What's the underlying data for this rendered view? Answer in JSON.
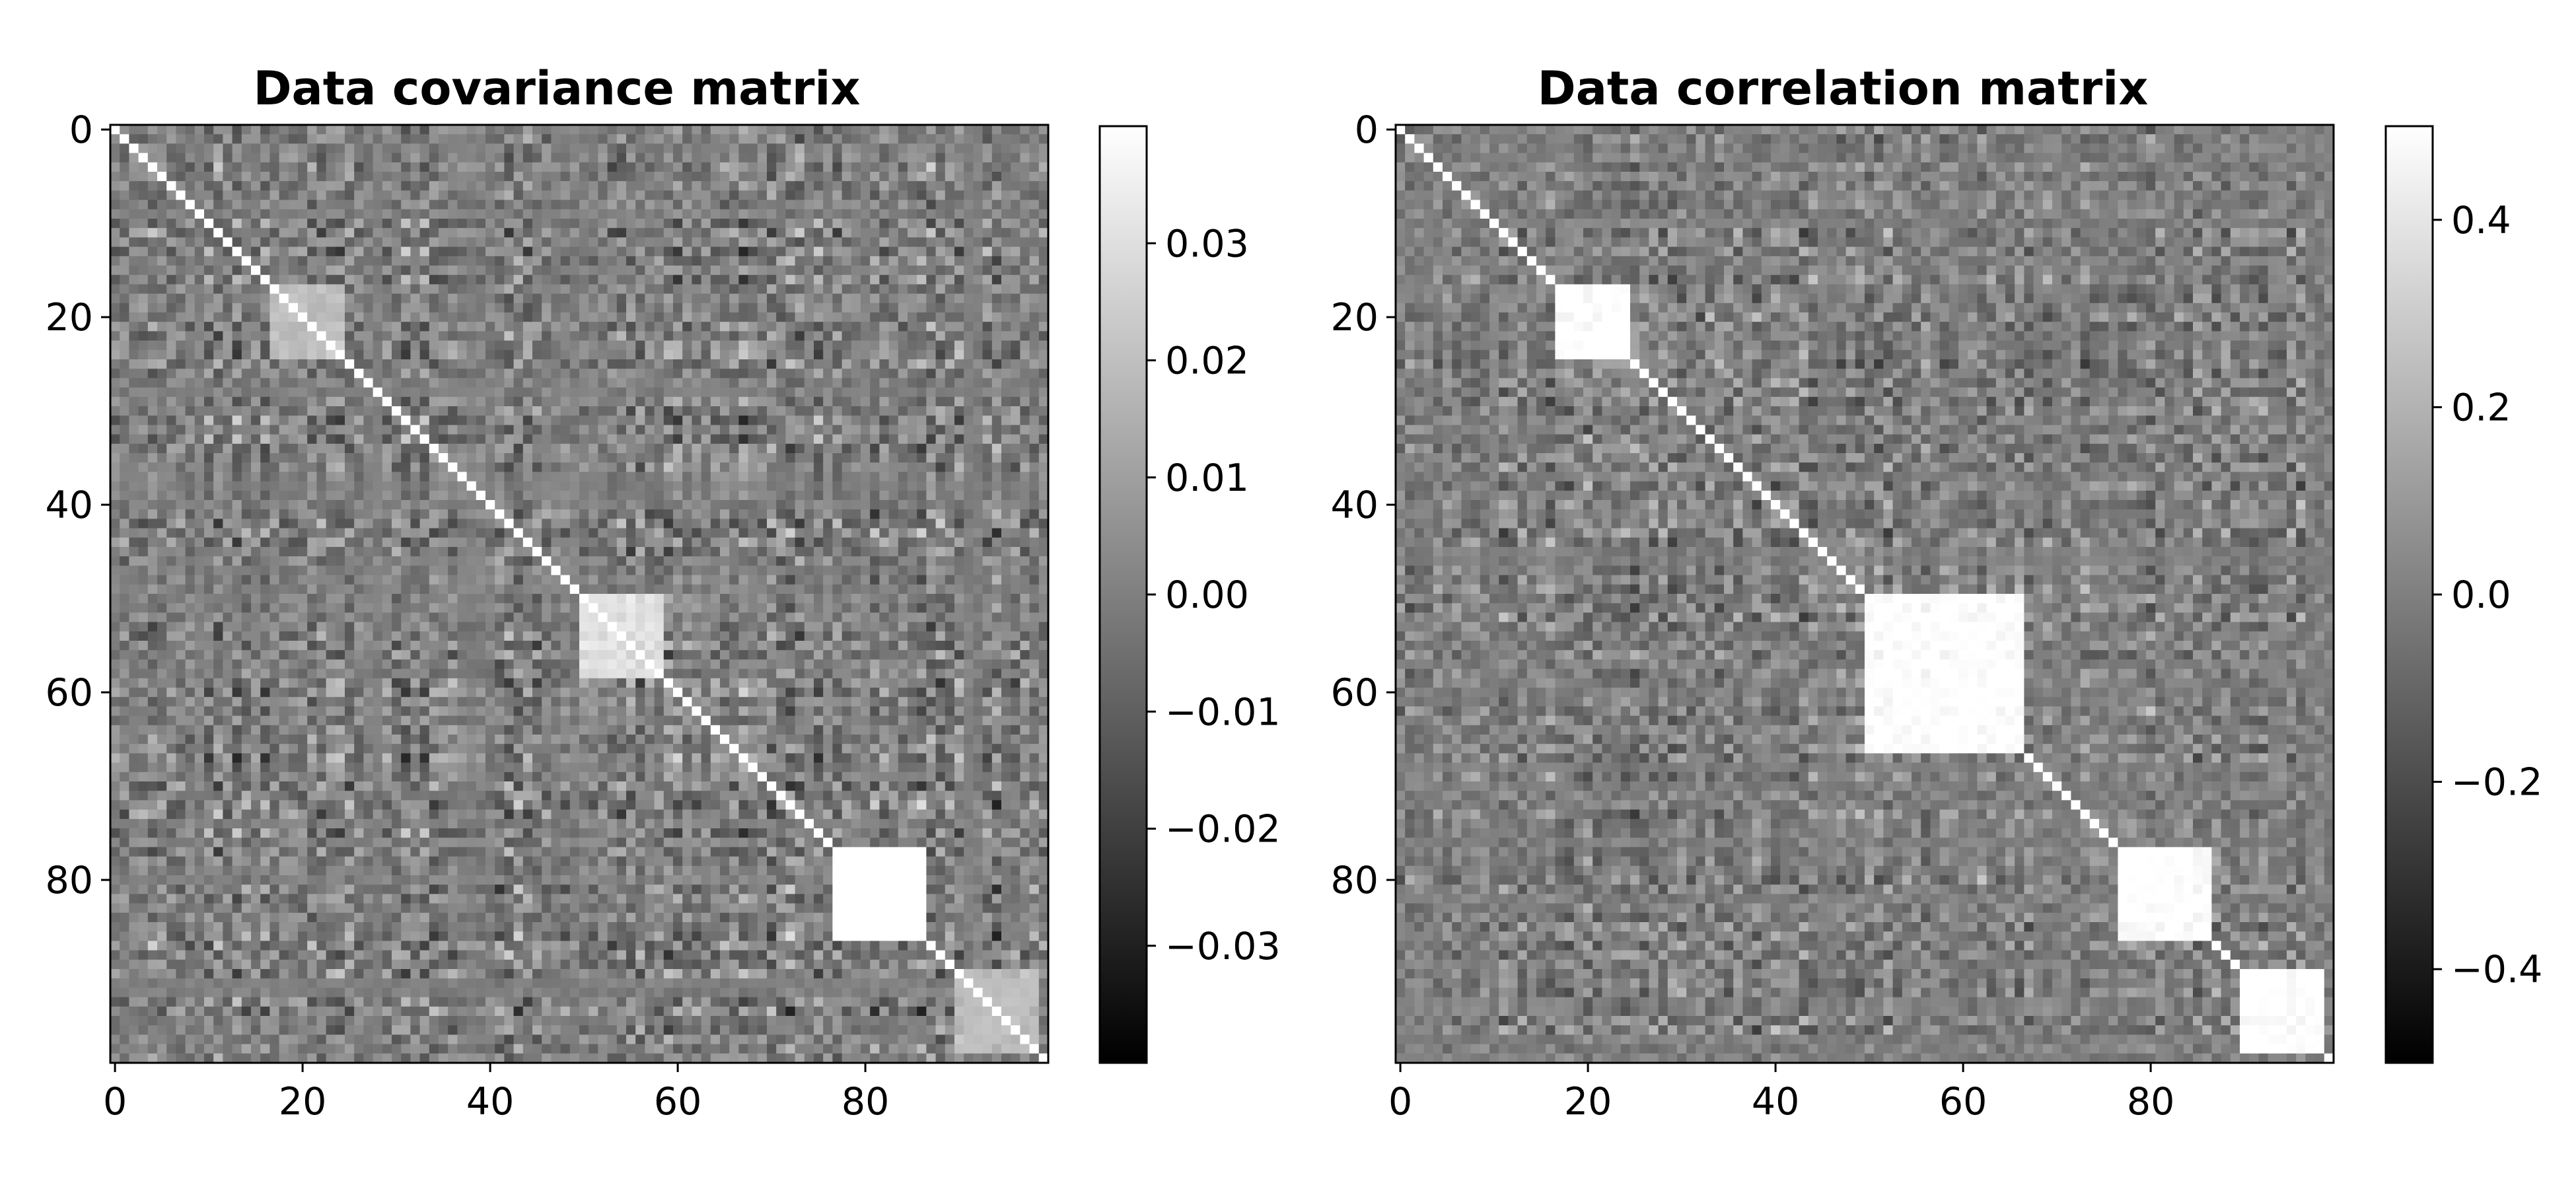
{
  "chart_data": [
    {
      "type": "heatmap",
      "title": "Data covariance matrix",
      "colormap": "gray",
      "matrix_size": 100,
      "x_ticks": [
        "0",
        "20",
        "40",
        "60",
        "80"
      ],
      "y_ticks": [
        "0",
        "20",
        "40",
        "60",
        "80"
      ],
      "x_tick_values": [
        0,
        20,
        40,
        60,
        80
      ],
      "y_tick_values": [
        0,
        20,
        40,
        60,
        80
      ],
      "vmin": -0.04,
      "vmax": 0.04,
      "colorbar_ticks": [
        "0.03",
        "0.02",
        "0.01",
        "0.00",
        "−0.01",
        "−0.02",
        "−0.03"
      ],
      "colorbar_tick_values": [
        0.03,
        0.02,
        0.01,
        0.0,
        -0.01,
        -0.02,
        -0.03
      ],
      "bright_blocks": [
        [
          17,
          24,
          0.02
        ],
        [
          50,
          58,
          0.03
        ],
        [
          77,
          86,
          0.045
        ],
        [
          90,
          98,
          0.02
        ]
      ]
    },
    {
      "type": "heatmap",
      "title": "Data correlation matrix",
      "colormap": "gray",
      "matrix_size": 100,
      "x_ticks": [
        "0",
        "20",
        "40",
        "60",
        "80"
      ],
      "y_ticks": [
        "0",
        "20",
        "40",
        "60",
        "80"
      ],
      "x_tick_values": [
        0,
        20,
        40,
        60,
        80
      ],
      "y_tick_values": [
        0,
        20,
        40,
        60,
        80
      ],
      "vmin": -0.5,
      "vmax": 0.5,
      "colorbar_ticks": [
        "0.4",
        "0.2",
        "0.0",
        "−0.2",
        "−0.4"
      ],
      "colorbar_tick_values": [
        0.4,
        0.2,
        0.0,
        -0.2,
        -0.4
      ],
      "bright_blocks": [
        [
          17,
          24,
          0.5
        ],
        [
          50,
          66,
          0.5
        ],
        [
          77,
          86,
          0.5
        ],
        [
          90,
          98,
          0.5
        ]
      ]
    }
  ]
}
